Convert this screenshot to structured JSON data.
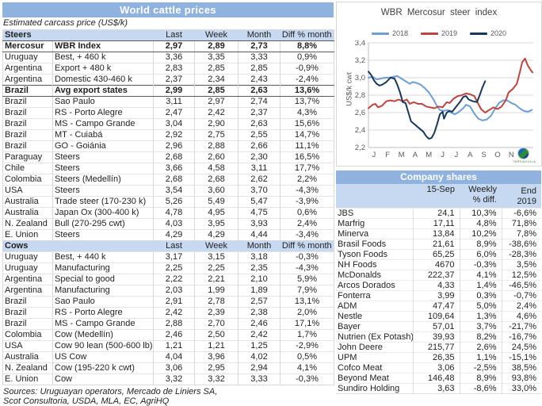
{
  "left_panel": {
    "title": "World cattle prices",
    "subtitle": "Estimated carcass price (US$/k)",
    "columns": [
      "Last",
      "Week",
      "Month",
      "Diff % month"
    ],
    "steers": {
      "label": "Steers",
      "rows": [
        {
          "country": "Mercosur",
          "desc": "WBR Index",
          "last": "2,97",
          "week": "2,89",
          "month": "2,73",
          "diff": "8,8%",
          "bold": true
        },
        {
          "country": "Uruguay",
          "desc": "Best, + 460 k",
          "last": "3,36",
          "week": "3,35",
          "month": "3,33",
          "diff": "0,9%"
        },
        {
          "country": "Argentina",
          "desc": "Export + 480 k",
          "last": "2,83",
          "week": "2,85",
          "month": "2,85",
          "diff": "-0,9%"
        },
        {
          "country": "Argentina",
          "desc": "Domestic 430-460 k",
          "last": "2,37",
          "week": "2,34",
          "month": "2,43",
          "diff": "-2,4%"
        },
        {
          "country": "Brazil",
          "desc": "Avg export states",
          "last": "2,99",
          "week": "2,85",
          "month": "2,63",
          "diff": "13,6%",
          "bold": true
        },
        {
          "country": "Brazil",
          "desc": "Sao Paulo",
          "last": "3,11",
          "week": "2,97",
          "month": "2,74",
          "diff": "13,7%"
        },
        {
          "country": "Brazil",
          "desc": "RS - Porto Alegre",
          "last": "2,47",
          "week": "2,42",
          "month": "2,37",
          "diff": "4,3%"
        },
        {
          "country": "Brazil",
          "desc": "MS - Campo Grande",
          "last": "3,04",
          "week": "2,90",
          "month": "2,63",
          "diff": "15,6%"
        },
        {
          "country": "Brazil",
          "desc": "MT - Cuiabá",
          "last": "2,92",
          "week": "2,75",
          "month": "2,55",
          "diff": "14,7%"
        },
        {
          "country": "Brazil",
          "desc": "GO - Goiánia",
          "last": "2,96",
          "week": "2,88",
          "month": "2,66",
          "diff": "11,1%"
        },
        {
          "country": "Paraguay",
          "desc": "Steers",
          "last": "2,68",
          "week": "2,60",
          "month": "2,30",
          "diff": "16,5%"
        },
        {
          "country": "Chile",
          "desc": "Steers",
          "last": "3,66",
          "week": "4,58",
          "month": "3,11",
          "diff": "17,7%"
        },
        {
          "country": "Colombia",
          "desc": "Steers (Medellín)",
          "last": "2,68",
          "week": "2,68",
          "month": "2,62",
          "diff": "2,2%"
        },
        {
          "country": "USA",
          "desc": "Steers",
          "last": "3,54",
          "week": "3,60",
          "month": "3,70",
          "diff": "-4,3%"
        },
        {
          "country": "Australia",
          "desc": "Trade steer (170-230 k)",
          "last": "5,26",
          "week": "5,49",
          "month": "5,47",
          "diff": "-3,9%"
        },
        {
          "country": "Australia",
          "desc": "Japan Ox (300-400 k)",
          "last": "4,78",
          "week": "4,95",
          "month": "4,75",
          "diff": "0,6%"
        },
        {
          "country": "N. Zealand",
          "desc": "Bull (270-295 cwt)",
          "last": "4,03",
          "week": "3,95",
          "month": "3,93",
          "diff": "2,4%"
        },
        {
          "country": "E. Union",
          "desc": "Steers",
          "last": "4,29",
          "week": "4,29",
          "month": "4,44",
          "diff": "-3,4%"
        }
      ]
    },
    "cows": {
      "label": "Cows",
      "rows": [
        {
          "country": "Uruguay",
          "desc": "Best, + 440 k",
          "last": "3,17",
          "week": "3,15",
          "month": "3,18",
          "diff": "-0,3%"
        },
        {
          "country": "Uruguay",
          "desc": "Manufacturing",
          "last": "2,25",
          "week": "2,25",
          "month": "2,35",
          "diff": "-4,3%"
        },
        {
          "country": "Argentina",
          "desc": "Special to good",
          "last": "2,22",
          "week": "2,21",
          "month": "2,10",
          "diff": "5,9%"
        },
        {
          "country": "Argentina",
          "desc": "Manufacturing",
          "last": "2,03",
          "week": "1,99",
          "month": "1,89",
          "diff": "7,9%"
        },
        {
          "country": "Brazil",
          "desc": "Sao Paulo",
          "last": "2,91",
          "week": "2,78",
          "month": "2,57",
          "diff": "13,1%"
        },
        {
          "country": "Brazil",
          "desc": "RS - Porto Alegre",
          "last": "2,42",
          "week": "2,39",
          "month": "2,38",
          "diff": "2,0%"
        },
        {
          "country": "Brazil",
          "desc": "MS - Campo Grande",
          "last": "2,88",
          "week": "2,70",
          "month": "2,46",
          "diff": "17,1%"
        },
        {
          "country": "Colombia",
          "desc": "Cow (Medellín)",
          "last": "2,46",
          "week": "2,50",
          "month": "2,42",
          "diff": "1,7%"
        },
        {
          "country": "USA",
          "desc": "Cow 90 lean (500-600 lb)",
          "last": "1,21",
          "week": "1,21",
          "month": "1,25",
          "diff": "-2,9%"
        },
        {
          "country": "Australia",
          "desc": "US Cow",
          "last": "4,04",
          "week": "3,96",
          "month": "4,02",
          "diff": "0,5%"
        },
        {
          "country": "N. Zealand",
          "desc": "Cow (195-220 k cwt)",
          "last": "3,06",
          "week": "2,95",
          "month": "2,94",
          "diff": "4,1%"
        },
        {
          "country": "E. Union",
          "desc": "Cow",
          "last": "3,32",
          "week": "3,32",
          "month": "3,33",
          "diff": "-0,3%"
        }
      ]
    },
    "sources": [
      "Sources: Uruguayan operators, Mercado de Liniers SA,",
      "Scot Consultoria, USDA, MLA, EC, AgriHQ"
    ]
  },
  "chart_data": {
    "type": "line",
    "title": "WBR Mercosur steer index",
    "ylabel": "US$/k cwt",
    "ylim": [
      2.2,
      3.4
    ],
    "yticks": [
      [
        2.2,
        "2,2"
      ],
      [
        2.4,
        "2,4"
      ],
      [
        2.6,
        "2,6"
      ],
      [
        2.8,
        "2,8"
      ],
      [
        3.0,
        "3,0"
      ],
      [
        3.2,
        "3,2"
      ],
      [
        3.4,
        "3,4"
      ]
    ],
    "xlim": [
      0,
      12
    ],
    "xticklabels": [
      "J",
      "F",
      "M",
      "A",
      "M",
      "J",
      "J",
      "A",
      "S",
      "O",
      "N",
      "D"
    ],
    "grid": true,
    "legend_position": "top",
    "logo_caption": "TARDAGUILA",
    "series": [
      {
        "name": "2018",
        "color": "#6D9ED4",
        "points": [
          [
            0,
            3.0
          ],
          [
            0.3,
            3.01
          ],
          [
            0.6,
            2.98
          ],
          [
            0.9,
            2.99
          ],
          [
            1.2,
            3.0
          ],
          [
            1.5,
            3.0
          ],
          [
            1.8,
            3.01
          ],
          [
            2.1,
            3.02
          ],
          [
            2.4,
            2.99
          ],
          [
            2.7,
            2.96
          ],
          [
            3.0,
            2.93
          ],
          [
            3.2,
            2.95
          ],
          [
            3.5,
            2.94
          ],
          [
            3.8,
            2.92
          ],
          [
            4.1,
            2.88
          ],
          [
            4.4,
            2.83
          ],
          [
            4.7,
            2.76
          ],
          [
            5.0,
            2.67
          ],
          [
            5.2,
            2.63
          ],
          [
            5.5,
            2.62
          ],
          [
            5.8,
            2.63
          ],
          [
            6.0,
            2.6
          ],
          [
            6.3,
            2.58
          ],
          [
            6.6,
            2.61
          ],
          [
            6.9,
            2.65
          ],
          [
            7.1,
            2.69
          ],
          [
            7.4,
            2.67
          ],
          [
            7.7,
            2.59
          ],
          [
            8.0,
            2.53
          ],
          [
            8.3,
            2.51
          ],
          [
            8.6,
            2.52
          ],
          [
            8.9,
            2.56
          ],
          [
            9.2,
            2.64
          ],
          [
            9.5,
            2.71
          ],
          [
            9.8,
            2.74
          ],
          [
            10.1,
            2.74
          ],
          [
            10.4,
            2.71
          ],
          [
            10.7,
            2.69
          ],
          [
            11.0,
            2.65
          ],
          [
            11.3,
            2.62
          ],
          [
            11.6,
            2.61
          ],
          [
            11.9,
            2.63
          ]
        ]
      },
      {
        "name": "2019",
        "color": "#C0433E",
        "points": [
          [
            0,
            2.65
          ],
          [
            0.3,
            2.69
          ],
          [
            0.5,
            2.7
          ],
          [
            0.7,
            2.66
          ],
          [
            1.0,
            2.68
          ],
          [
            1.3,
            2.73
          ],
          [
            1.6,
            2.74
          ],
          [
            1.9,
            2.73
          ],
          [
            2.2,
            2.75
          ],
          [
            2.5,
            2.73
          ],
          [
            2.8,
            2.75
          ],
          [
            3.0,
            2.7
          ],
          [
            3.3,
            2.72
          ],
          [
            3.6,
            2.7
          ],
          [
            3.9,
            2.7
          ],
          [
            4.2,
            2.67
          ],
          [
            4.5,
            2.66
          ],
          [
            4.8,
            2.65
          ],
          [
            5.1,
            2.67
          ],
          [
            5.4,
            2.66
          ],
          [
            5.7,
            2.72
          ],
          [
            5.9,
            2.71
          ],
          [
            6.2,
            2.76
          ],
          [
            6.5,
            2.79
          ],
          [
            6.8,
            2.8
          ],
          [
            7.1,
            2.82
          ],
          [
            7.4,
            2.81
          ],
          [
            7.7,
            2.79
          ],
          [
            7.9,
            2.73
          ],
          [
            8.2,
            2.64
          ],
          [
            8.5,
            2.6
          ],
          [
            8.8,
            2.63
          ],
          [
            9.1,
            2.66
          ],
          [
            9.4,
            2.64
          ],
          [
            9.7,
            2.67
          ],
          [
            10.0,
            2.74
          ],
          [
            10.2,
            2.83
          ],
          [
            10.5,
            2.87
          ],
          [
            10.8,
            2.93
          ],
          [
            11.0,
            3.05
          ],
          [
            11.2,
            3.18
          ],
          [
            11.4,
            3.22
          ],
          [
            11.6,
            3.14
          ],
          [
            11.8,
            3.09
          ],
          [
            11.95,
            3.06
          ]
        ]
      },
      {
        "name": "2020",
        "color": "#17375D",
        "points": [
          [
            0,
            3.07
          ],
          [
            0.2,
            3.03
          ],
          [
            0.4,
            2.97
          ],
          [
            0.6,
            2.93
          ],
          [
            0.8,
            2.91
          ],
          [
            1.0,
            2.92
          ],
          [
            1.3,
            2.95
          ],
          [
            1.6,
            3.0
          ],
          [
            1.9,
            2.99
          ],
          [
            2.1,
            2.92
          ],
          [
            2.3,
            2.83
          ],
          [
            2.5,
            2.72
          ],
          [
            2.7,
            2.71
          ],
          [
            3.1,
            2.5
          ],
          [
            3.4,
            2.46
          ],
          [
            3.7,
            2.42
          ],
          [
            4.0,
            2.38
          ],
          [
            4.2,
            2.33
          ],
          [
            4.4,
            2.3
          ],
          [
            4.6,
            2.31
          ],
          [
            4.8,
            2.37
          ],
          [
            5.0,
            2.47
          ],
          [
            5.2,
            2.58
          ],
          [
            5.4,
            2.61
          ],
          [
            5.5,
            2.53
          ],
          [
            5.7,
            2.6
          ],
          [
            5.9,
            2.62
          ],
          [
            6.1,
            2.61
          ],
          [
            6.4,
            2.67
          ],
          [
            6.7,
            2.73
          ],
          [
            6.9,
            2.78
          ],
          [
            7.1,
            2.79
          ],
          [
            7.3,
            2.75
          ],
          [
            7.6,
            2.73
          ],
          [
            7.9,
            2.72
          ],
          [
            8.1,
            2.8
          ],
          [
            8.3,
            2.89
          ],
          [
            8.5,
            2.96
          ]
        ]
      }
    ]
  },
  "company_shares": {
    "title": "Company shares",
    "header": {
      "price": "15-Sep",
      "weekly1": "Weekly",
      "weekly2": "% diff.",
      "end": "End 2019"
    },
    "rows": [
      {
        "name": "JBS",
        "price": "24,1",
        "weekly": "10,3%",
        "end2019": "-6,6%"
      },
      {
        "name": "Marfrig",
        "price": "17,11",
        "weekly": "4,8%",
        "end2019": "71,8%"
      },
      {
        "name": "Minerva",
        "price": "13,84",
        "weekly": "10,2%",
        "end2019": "7,8%"
      },
      {
        "name": "Brasil Foods",
        "price": "21,61",
        "weekly": "8,9%",
        "end2019": "-38,6%"
      },
      {
        "name": "Tyson Foods",
        "price": "65,25",
        "weekly": "6,0%",
        "end2019": "-28,3%"
      },
      {
        "name": "NH Foods",
        "price": "4670",
        "weekly": "-0,3%",
        "end2019": "3,5%"
      },
      {
        "name": "McDonalds",
        "price": "222,37",
        "weekly": "4,1%",
        "end2019": "12,5%"
      },
      {
        "name": "Arcos Dorados",
        "price": "4,33",
        "weekly": "1,4%",
        "end2019": "-46,5%"
      },
      {
        "name": "Fonterra",
        "price": "3,99",
        "weekly": "0,3%",
        "end2019": "-0,7%"
      },
      {
        "name": "ADM",
        "price": "47,47",
        "weekly": "5,0%",
        "end2019": "2,4%"
      },
      {
        "name": "Nestle",
        "price": "109,64",
        "weekly": "1,3%",
        "end2019": "4,6%"
      },
      {
        "name": "Bayer",
        "price": "57,01",
        "weekly": "3,7%",
        "end2019": "-21,7%"
      },
      {
        "name": "Nutrien (Ex Potash)",
        "price": "39,93",
        "weekly": "8,2%",
        "end2019": "-16,7%"
      },
      {
        "name": "John Deere",
        "price": "215,77",
        "weekly": "2,6%",
        "end2019": "24,5%"
      },
      {
        "name": "UPM",
        "price": "26,35",
        "weekly": "1,1%",
        "end2019": "-15,1%"
      },
      {
        "name": "Cofco Meat",
        "price": "3,06",
        "weekly": "-2,5%",
        "end2019": "38,5%"
      },
      {
        "name": "Beyond Meat",
        "price": "146,48",
        "weekly": "8,9%",
        "end2019": "93,8%"
      },
      {
        "name": "Sundiro Holding",
        "price": "3,63",
        "weekly": "-8,6%",
        "end2019": "33,0%"
      }
    ]
  },
  "colors": {
    "title_bar": "#8FB3DE",
    "header_row": "#C6D9F1",
    "grid": "#D9D9D9",
    "series_2018": "#6D9ED4",
    "series_2019": "#C0433E",
    "series_2020": "#17375D"
  }
}
